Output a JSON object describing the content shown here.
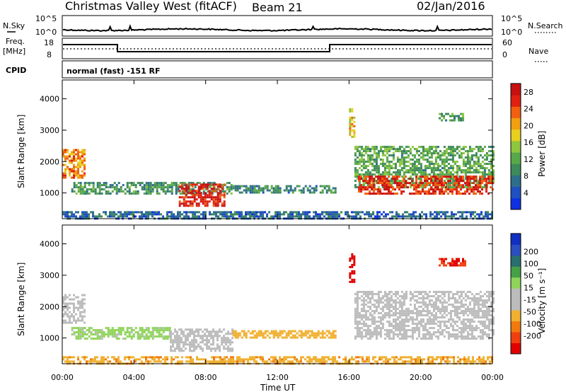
{
  "header": {
    "station": "Christmas Valley West (fitACF)",
    "beam": "Beam 21",
    "date": "02/Jan/2016"
  },
  "strip": {
    "nsky_label": "N.Sky",
    "nsky_ticks": [
      "10^5",
      "10^0"
    ],
    "nsearch_label": "N.Search",
    "nsearch_ticks": [
      "10^5",
      "10^0"
    ],
    "freq_label": "Freq.",
    "freq_unit": "[MHz]",
    "freq_ticks": [
      "18",
      "8"
    ],
    "nave_label": "Nave",
    "nave_ticks": [
      "60",
      "0"
    ],
    "cpid_label": "CPID",
    "cpid_text": "normal (fast) -151 RF"
  },
  "colors": {
    "power_scale": [
      "#1030e0",
      "#2050c0",
      "#2e6e8a",
      "#3d8a5a",
      "#58a84a",
      "#8ec63f",
      "#e8d020",
      "#f0a010",
      "#f06010",
      "#e02010",
      "#c81010"
    ],
    "velocity_scale": [
      "#e00000",
      "#f04010",
      "#f07a10",
      "#f0b030",
      "#bcbcbc",
      "#bcbcbc",
      "#8fd45a",
      "#46a046",
      "#2a6e6e",
      "#2c4ec0",
      "#1030c0"
    ]
  },
  "chart_data": [
    {
      "type": "heatmap",
      "panel": "power",
      "title": "Christmas Valley West (fitACF) Beam 21 02/Jan/2016",
      "xlabel": "Time UT",
      "ylabel": "Slant Range [km]",
      "x_range_hours": [
        0,
        24
      ],
      "x_ticks": [
        "00:00",
        "04:00",
        "08:00",
        "12:00",
        "16:00",
        "20:00",
        "00:00"
      ],
      "y_range_km": [
        180,
        4600
      ],
      "y_ticks": [
        1000,
        2000,
        3000,
        4000
      ],
      "colorbar": {
        "label": "Power [dB]",
        "ticks": [
          4,
          8,
          12,
          16,
          20,
          24,
          28
        ],
        "range": [
          0,
          30
        ]
      },
      "regions": [
        {
          "t0": 0.0,
          "t1": 1.3,
          "r0": 1500,
          "r1": 2400,
          "level": 22
        },
        {
          "t0": 0.5,
          "t1": 9.5,
          "r0": 950,
          "r1": 1350,
          "level": 10
        },
        {
          "t0": 9.5,
          "t1": 15.3,
          "r0": 1000,
          "r1": 1250,
          "level": 9
        },
        {
          "t0": 6.5,
          "t1": 9.0,
          "r0": 600,
          "r1": 1300,
          "level": 27
        },
        {
          "t0": 0.0,
          "t1": 24.0,
          "r0": 180,
          "r1": 420,
          "level": 6
        },
        {
          "t0": 16.0,
          "t1": 16.3,
          "r0": 2800,
          "r1": 3700,
          "level": 18
        },
        {
          "t0": 16.3,
          "t1": 24.0,
          "r0": 1200,
          "r1": 2500,
          "level": 12
        },
        {
          "t0": 16.5,
          "t1": 24.0,
          "r0": 1000,
          "r1": 1550,
          "level": 26
        },
        {
          "t0": 21.0,
          "t1": 22.5,
          "r0": 3300,
          "r1": 3550,
          "level": 11
        }
      ]
    },
    {
      "type": "heatmap",
      "panel": "velocity",
      "xlabel": "Time UT",
      "ylabel": "Slant Range [km]",
      "x_range_hours": [
        0,
        24
      ],
      "x_ticks": [
        "00:00",
        "04:00",
        "08:00",
        "12:00",
        "16:00",
        "20:00",
        "00:00"
      ],
      "y_range_km": [
        180,
        4600
      ],
      "y_ticks": [
        1000,
        2000,
        3000,
        4000
      ],
      "colorbar": {
        "label": "Velocity [m s⁻¹]",
        "ticks": [
          -200,
          -100,
          -50,
          -15,
          15,
          50,
          100,
          200
        ],
        "range": [
          -250,
          250
        ]
      },
      "regions": [
        {
          "t0": 0.0,
          "t1": 1.3,
          "r0": 1500,
          "r1": 2400,
          "level": 0
        },
        {
          "t0": 0.5,
          "t1": 6.0,
          "r0": 950,
          "r1": 1350,
          "level": 25
        },
        {
          "t0": 6.0,
          "t1": 9.5,
          "r0": 600,
          "r1": 1300,
          "level": 0
        },
        {
          "t0": 9.5,
          "t1": 15.3,
          "r0": 1000,
          "r1": 1250,
          "level": -30
        },
        {
          "t0": 0.0,
          "t1": 24.0,
          "r0": 180,
          "r1": 420,
          "level": -40
        },
        {
          "t0": 16.0,
          "t1": 16.3,
          "r0": 2800,
          "r1": 3700,
          "level": -220
        },
        {
          "t0": 16.3,
          "t1": 24.0,
          "r0": 1000,
          "r1": 2500,
          "level": 0
        },
        {
          "t0": 21.0,
          "t1": 22.5,
          "r0": 3300,
          "r1": 3550,
          "level": -200
        }
      ]
    }
  ]
}
